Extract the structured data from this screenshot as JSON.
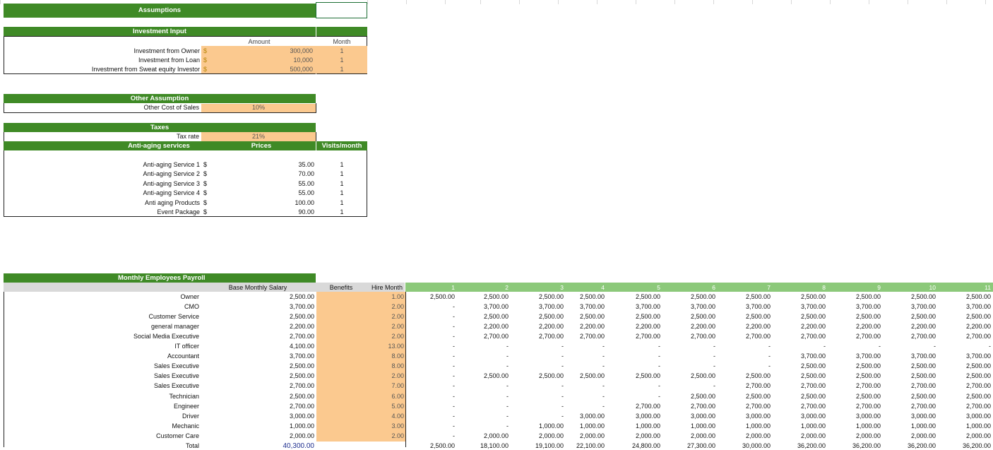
{
  "sections": {
    "assumptions": "Assumptions",
    "investment_input": "Investment Input",
    "other_assumption": "Other Assumption",
    "taxes": "Taxes",
    "payroll": "Monthly Employees Payroll"
  },
  "investment": {
    "amount_header": "Amount",
    "month_header": "Month",
    "rows": [
      {
        "label": "Investment from Owner",
        "currency": "$",
        "amount": "300,000",
        "month": "1"
      },
      {
        "label": "Investment from Loan",
        "currency": "$",
        "amount": "10,000",
        "month": "1"
      },
      {
        "label": "Investment from Sweat equity Investor",
        "currency": "$",
        "amount": "500,000",
        "month": "1"
      }
    ]
  },
  "other": {
    "label": "Other Cost of Sales",
    "value": "10%"
  },
  "taxes": {
    "label": "Tax rate",
    "value": "21%"
  },
  "services": {
    "header_name": "Anti-aging services",
    "header_prices": "Prices",
    "header_visits": "Visits/month",
    "rows": [
      {
        "label": "Anti-aging Service 1",
        "currency": "$",
        "price": "35.00",
        "visits": "1"
      },
      {
        "label": "Anti-aging Service 2",
        "currency": "$",
        "price": "70.00",
        "visits": "1"
      },
      {
        "label": "Anti-aging Service 3",
        "currency": "$",
        "price": "55.00",
        "visits": "1"
      },
      {
        "label": "Anti-aging Service 4",
        "currency": "$",
        "price": "55.00",
        "visits": "1"
      },
      {
        "label": "Anti aging Products",
        "currency": "$",
        "price": "100.00",
        "visits": "1"
      },
      {
        "label": "Event Package",
        "currency": "$",
        "price": "90.00",
        "visits": "1"
      }
    ]
  },
  "payroll": {
    "col_salary": "Base Monthly Salary",
    "col_benefits": "Benefits",
    "col_hire": "Hire Month",
    "months": [
      "1",
      "2",
      "3",
      "4",
      "5",
      "6",
      "7",
      "8",
      "9",
      "10",
      "11"
    ],
    "rows": [
      {
        "role": "Owner",
        "salary": "2,500.00",
        "hire": "1.00",
        "m": [
          "2,500.00",
          "2,500.00",
          "2,500.00",
          "2,500.00",
          "2,500.00",
          "2,500.00",
          "2,500.00",
          "2,500.00",
          "2,500.00",
          "2,500.00",
          "2,500.00"
        ]
      },
      {
        "role": "CMO",
        "salary": "3,700.00",
        "hire": "2.00",
        "m": [
          "-",
          "3,700.00",
          "3,700.00",
          "3,700.00",
          "3,700.00",
          "3,700.00",
          "3,700.00",
          "3,700.00",
          "3,700.00",
          "3,700.00",
          "3,700.00"
        ]
      },
      {
        "role": "Customer Service",
        "salary": "2,500.00",
        "hire": "2.00",
        "m": [
          "-",
          "2,500.00",
          "2,500.00",
          "2,500.00",
          "2,500.00",
          "2,500.00",
          "2,500.00",
          "2,500.00",
          "2,500.00",
          "2,500.00",
          "2,500.00"
        ]
      },
      {
        "role": "general manager",
        "salary": "2,200.00",
        "hire": "2.00",
        "m": [
          "-",
          "2,200.00",
          "2,200.00",
          "2,200.00",
          "2,200.00",
          "2,200.00",
          "2,200.00",
          "2,200.00",
          "2,200.00",
          "2,200.00",
          "2,200.00"
        ]
      },
      {
        "role": "Social Media Executive",
        "salary": "2,700.00",
        "hire": "2.00",
        "m": [
          "-",
          "2,700.00",
          "2,700.00",
          "2,700.00",
          "2,700.00",
          "2,700.00",
          "2,700.00",
          "2,700.00",
          "2,700.00",
          "2,700.00",
          "2,700.00"
        ]
      },
      {
        "role": "IT officer",
        "salary": "4,100.00",
        "hire": "13.00",
        "m": [
          "-",
          "-",
          "-",
          "-",
          "-",
          "-",
          "-",
          "-",
          "-",
          "-",
          "-"
        ]
      },
      {
        "role": "Accountant",
        "salary": "3,700.00",
        "hire": "8.00",
        "m": [
          "-",
          "-",
          "-",
          "-",
          "-",
          "-",
          "-",
          "3,700.00",
          "3,700.00",
          "3,700.00",
          "3,700.00"
        ]
      },
      {
        "role": "Sales Executive",
        "salary": "2,500.00",
        "hire": "8.00",
        "m": [
          "-",
          "-",
          "-",
          "-",
          "-",
          "-",
          "-",
          "2,500.00",
          "2,500.00",
          "2,500.00",
          "2,500.00"
        ]
      },
      {
        "role": "Sales Executive",
        "salary": "2,500.00",
        "hire": "2.00",
        "m": [
          "-",
          "2,500.00",
          "2,500.00",
          "2,500.00",
          "2,500.00",
          "2,500.00",
          "2,500.00",
          "2,500.00",
          "2,500.00",
          "2,500.00",
          "2,500.00"
        ]
      },
      {
        "role": "Sales Executive",
        "salary": "2,700.00",
        "hire": "7.00",
        "m": [
          "-",
          "-",
          "-",
          "-",
          "-",
          "-",
          "2,700.00",
          "2,700.00",
          "2,700.00",
          "2,700.00",
          "2,700.00"
        ]
      },
      {
        "role": "Technician",
        "salary": "2,500.00",
        "hire": "6.00",
        "m": [
          "-",
          "-",
          "-",
          "-",
          "-",
          "2,500.00",
          "2,500.00",
          "2,500.00",
          "2,500.00",
          "2,500.00",
          "2,500.00"
        ]
      },
      {
        "role": "Engineer",
        "salary": "2,700.00",
        "hire": "5.00",
        "m": [
          "-",
          "-",
          "-",
          "-",
          "2,700.00",
          "2,700.00",
          "2,700.00",
          "2,700.00",
          "2,700.00",
          "2,700.00",
          "2,700.00"
        ]
      },
      {
        "role": "Driver",
        "salary": "3,000.00",
        "hire": "4.00",
        "m": [
          "-",
          "-",
          "-",
          "3,000.00",
          "3,000.00",
          "3,000.00",
          "3,000.00",
          "3,000.00",
          "3,000.00",
          "3,000.00",
          "3,000.00"
        ]
      },
      {
        "role": "Mechanic",
        "salary": "1,000.00",
        "hire": "3.00",
        "m": [
          "-",
          "-",
          "1,000.00",
          "1,000.00",
          "1,000.00",
          "1,000.00",
          "1,000.00",
          "1,000.00",
          "1,000.00",
          "1,000.00",
          "1,000.00"
        ]
      },
      {
        "role": "Customer Care",
        "salary": "2,000.00",
        "hire": "2.00",
        "m": [
          "-",
          "2,000.00",
          "2,000.00",
          "2,000.00",
          "2,000.00",
          "2,000.00",
          "2,000.00",
          "2,000.00",
          "2,000.00",
          "2,000.00",
          "2,000.00"
        ]
      }
    ],
    "total": {
      "role": "Total",
      "salary": "40,300.00",
      "m": [
        "2,500.00",
        "18,100.00",
        "19,100.00",
        "22,100.00",
        "24,800.00",
        "27,300.00",
        "30,000.00",
        "36,200.00",
        "36,200.00",
        "36,200.00",
        "36,200.00"
      ]
    }
  }
}
